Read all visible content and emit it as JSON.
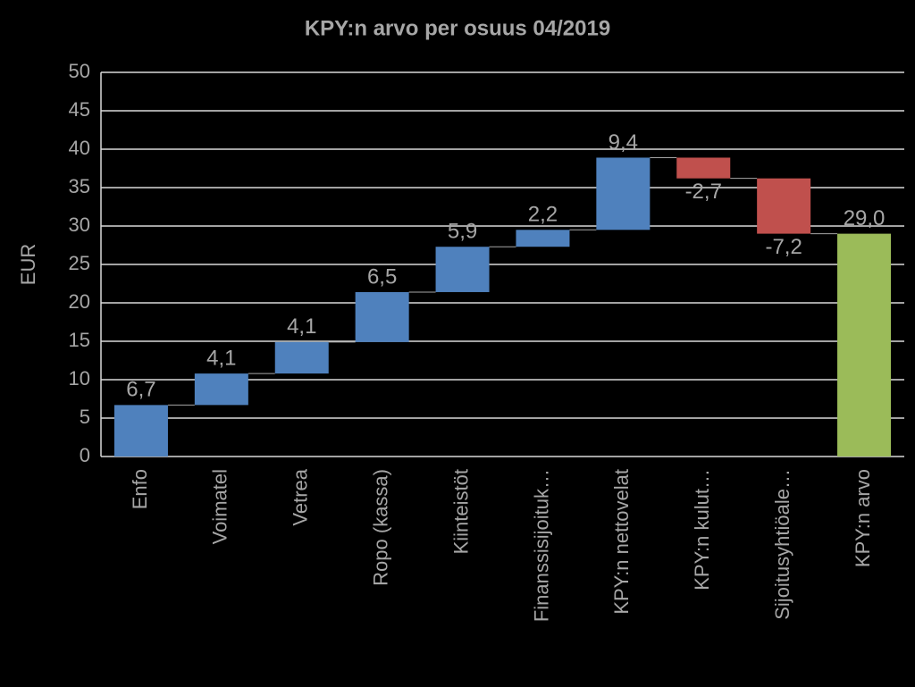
{
  "chart_data": {
    "type": "waterfall",
    "title": "KPY:n arvo per osuus 04/2019",
    "y_label": "EUR",
    "categories": [
      "Enfo",
      "Voimatel",
      "Vetrea",
      "Ropo (kassa)",
      "Kiinteistöt",
      "Finanssisijoituk…",
      "KPY:n nettovelat",
      "KPY:n kulut…",
      "Sijoitusyhtiöale…",
      "KPY:n arvo"
    ],
    "values": [
      6.7,
      4.1,
      4.1,
      6.5,
      5.9,
      2.2,
      9.4,
      -2.7,
      -7.2,
      29.0
    ],
    "value_labels": [
      "6,7",
      "4,1",
      "4,1",
      "6,5",
      "5,9",
      "2,2",
      "9,4",
      "-2,7",
      "-7,2",
      "29,0"
    ],
    "total": [
      false,
      false,
      false,
      false,
      false,
      false,
      false,
      false,
      false,
      true
    ],
    "colors": [
      "#4f81bd",
      "#4f81bd",
      "#4f81bd",
      "#4f81bd",
      "#4f81bd",
      "#4f81bd",
      "#4f81bd",
      "#c0504d",
      "#c0504d",
      "#9bbb59"
    ],
    "ylim": [
      0,
      50
    ],
    "yticks": [
      0,
      5,
      10,
      15,
      20,
      25,
      30,
      35,
      40,
      45,
      50
    ],
    "grid": true
  }
}
